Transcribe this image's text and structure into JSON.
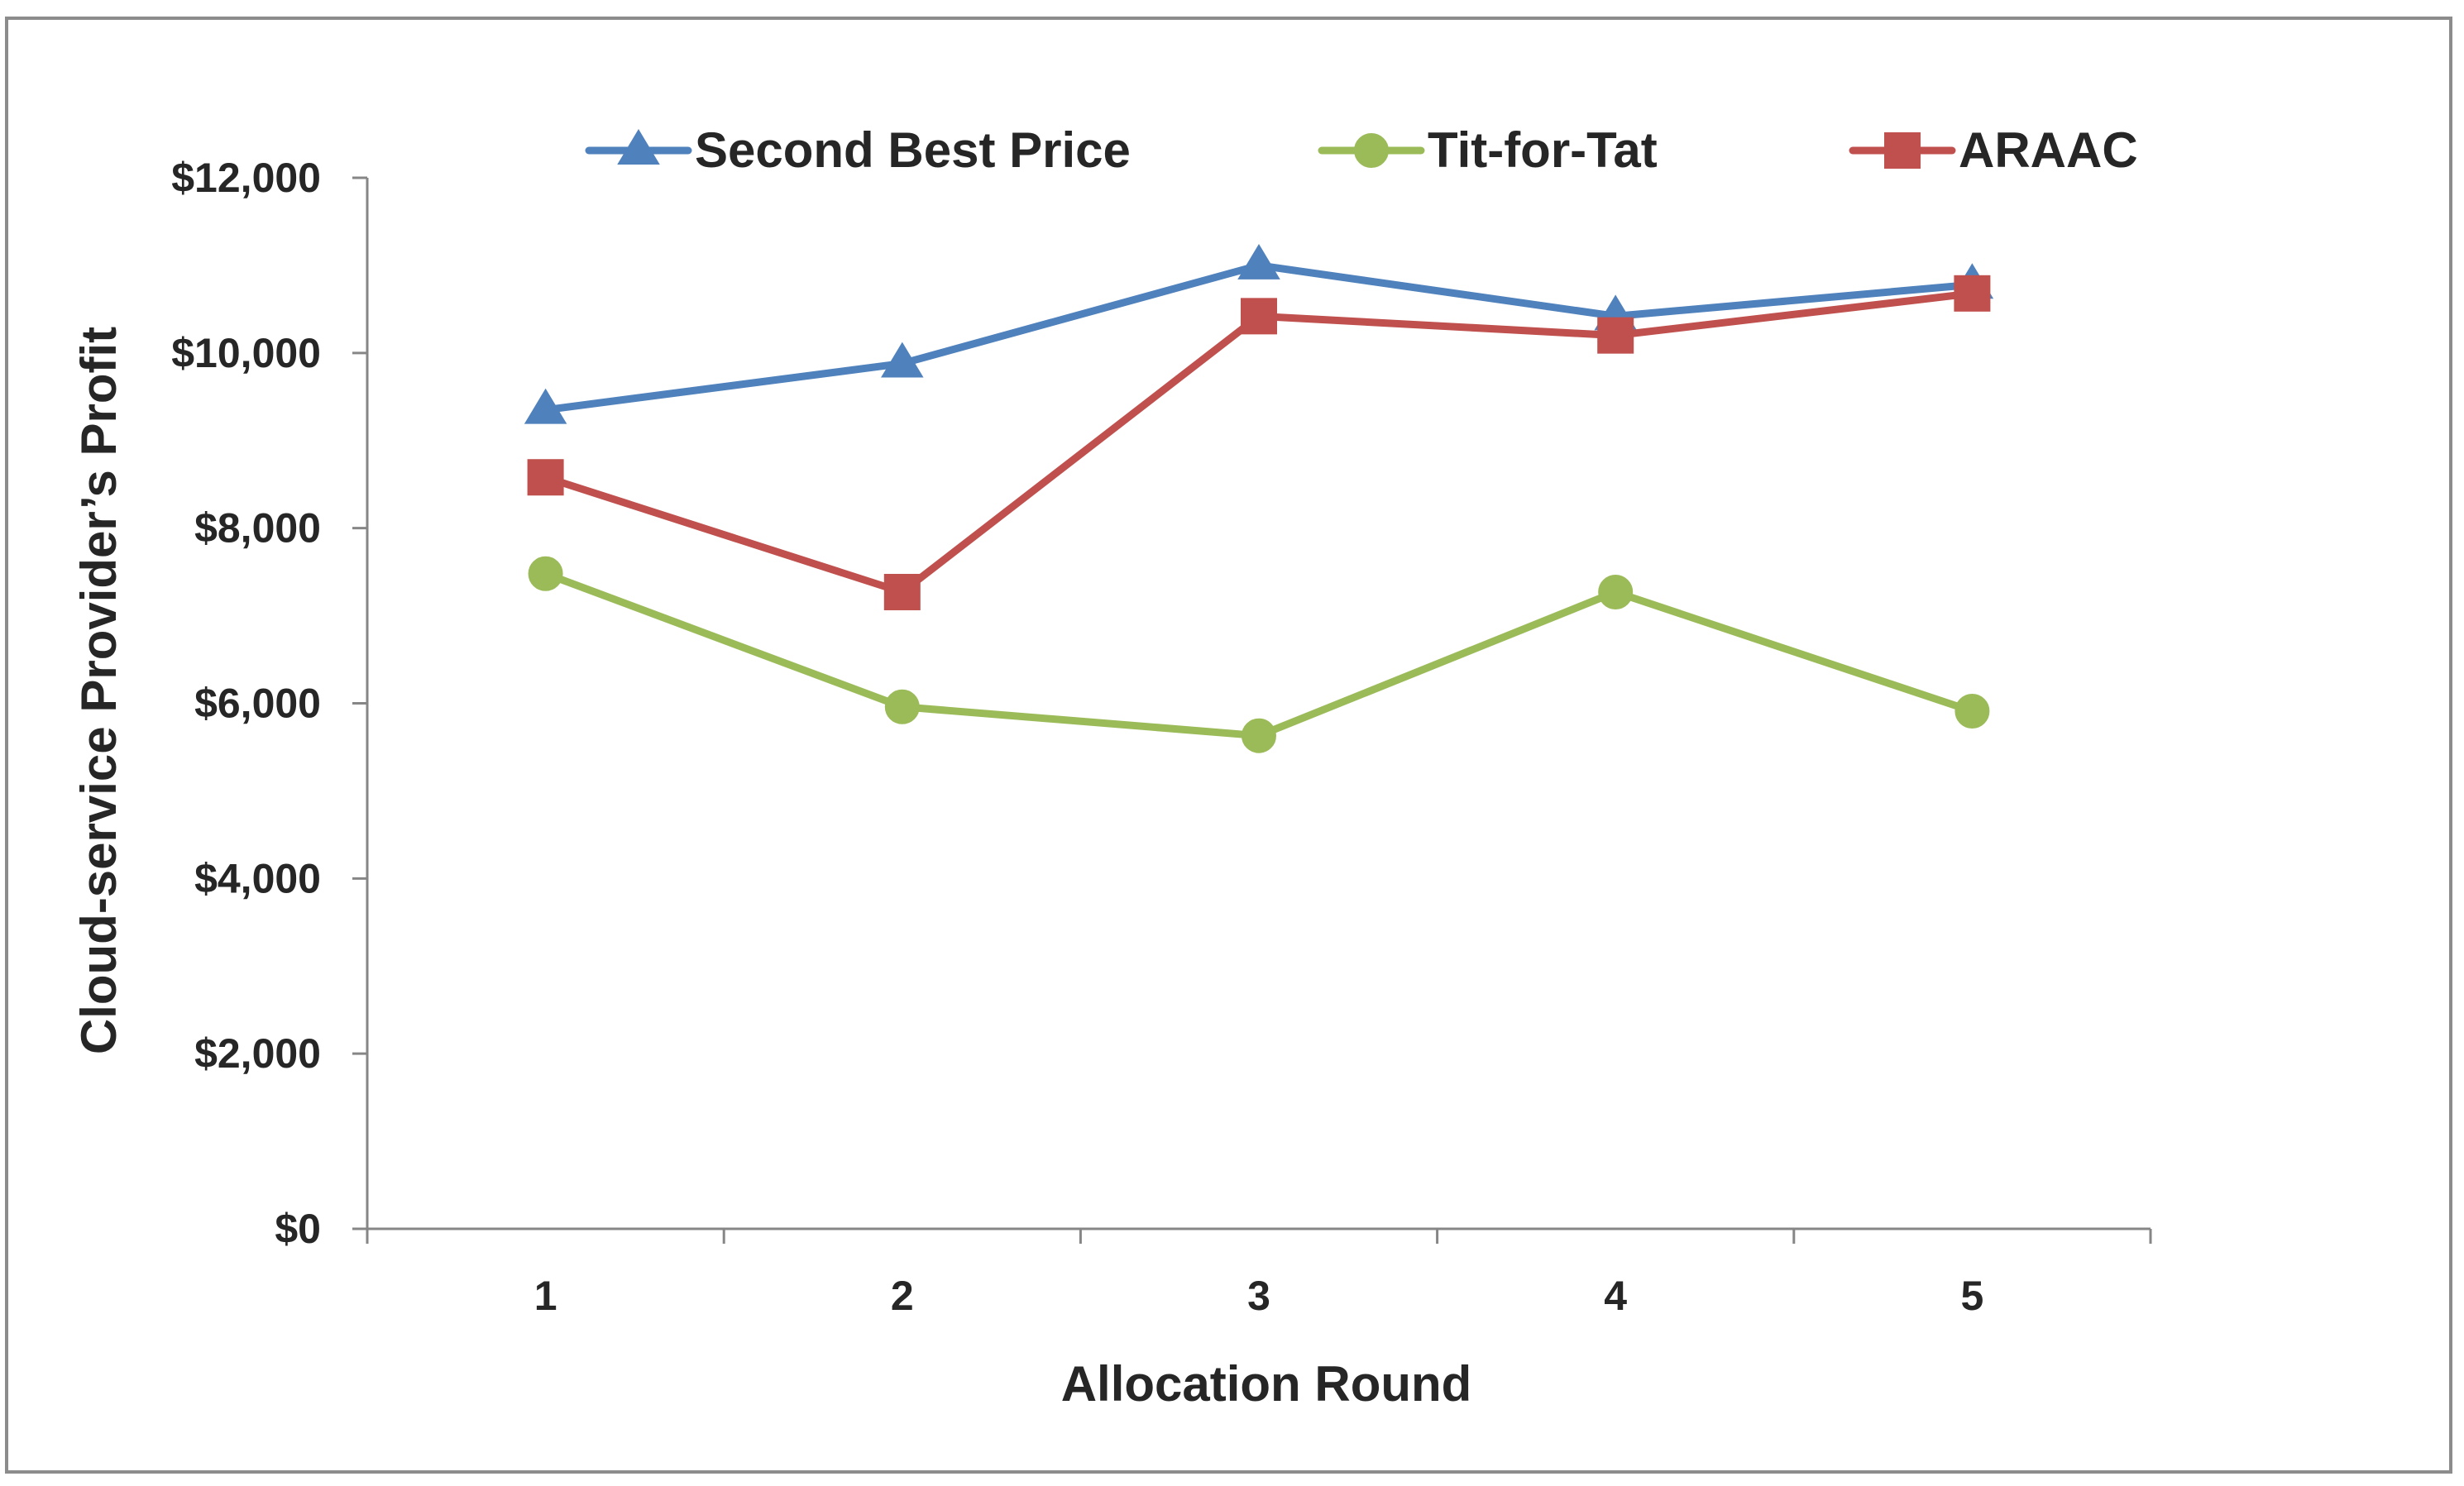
{
  "chart_data": {
    "type": "line",
    "xlabel": "Allocation Round",
    "ylabel": "Cloud-service Provider’s Profit",
    "categories": [
      "1",
      "2",
      "3",
      "4",
      "5"
    ],
    "ylim": [
      0,
      12000
    ],
    "yticks": [
      0,
      2000,
      4000,
      6000,
      8000,
      10000,
      12000
    ],
    "ytick_labels": [
      "$0",
      "$2,000",
      "$4,000",
      "$6,000",
      "$8,000",
      "$10,000",
      "$12,000"
    ],
    "grid": false,
    "legend_position": "top",
    "series": [
      {
        "name": "Second Best Price",
        "color": "#4F81BD",
        "marker": "triangle",
        "values": [
          9350,
          9880,
          11000,
          10420,
          10780
        ]
      },
      {
        "name": "Tit-for-Tat",
        "color": "#9BBB59",
        "marker": "circle",
        "values": [
          7480,
          5960,
          5630,
          7270,
          5910
        ]
      },
      {
        "name": "ARAAC",
        "color": "#C0504D",
        "marker": "square",
        "values": [
          8580,
          7270,
          10420,
          10200,
          10680
        ]
      }
    ]
  }
}
